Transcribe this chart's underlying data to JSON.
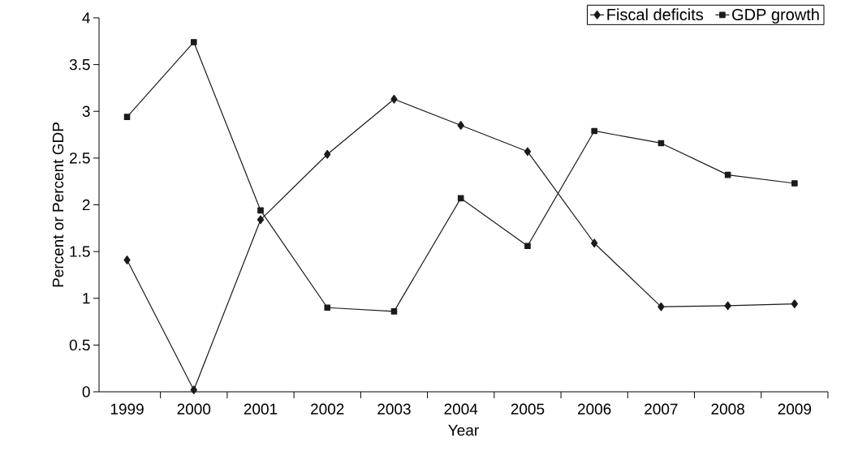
{
  "chart_data": {
    "type": "line",
    "xlabel": "Year",
    "ylabel": "Percent or Percent GDP",
    "categories": [
      "1999",
      "2000",
      "2001",
      "2002",
      "2003",
      "2004",
      "2005",
      "2006",
      "2007",
      "2008",
      "2009"
    ],
    "series": [
      {
        "name": "Fiscal deficits",
        "color": "#1a1a1a",
        "marker": "diamond",
        "values": [
          1.41,
          0.02,
          1.84,
          2.54,
          3.13,
          2.85,
          2.57,
          1.59,
          0.91,
          0.92,
          0.94
        ]
      },
      {
        "name": "GDP growth",
        "color": "#1a1a1a",
        "marker": "square",
        "values": [
          2.94,
          3.74,
          1.94,
          0.9,
          0.86,
          2.07,
          1.56,
          2.79,
          2.66,
          2.32,
          2.23
        ]
      }
    ],
    "ylim": [
      0,
      4
    ],
    "yticks": [
      0,
      0.5,
      1,
      1.5,
      2,
      2.5,
      3,
      3.5,
      4
    ],
    "legend": "top right",
    "grid": false,
    "line_style": "solid"
  }
}
